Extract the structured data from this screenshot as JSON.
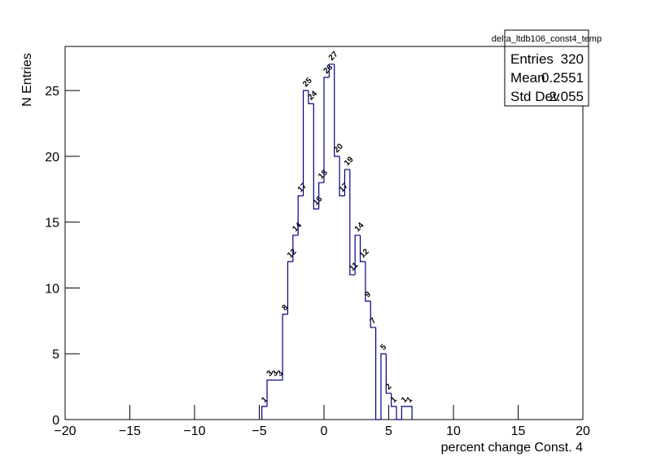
{
  "chart_data": {
    "type": "histogram",
    "x_label": "percent change Const. 4",
    "y_label": "N Entries",
    "bins": [
      -4.8,
      -4.4,
      -4.0,
      -3.6,
      -3.2,
      -2.8,
      -2.4,
      -2.0,
      -1.6,
      -1.2,
      -0.8,
      -0.4,
      0,
      0.4,
      0.8,
      1.2,
      1.6,
      2.0,
      2.4,
      2.8,
      3.2,
      3.6,
      4.0,
      4.4,
      4.8,
      5.2,
      5.6,
      6.0,
      6.4,
      6.8
    ],
    "values": [
      1,
      3,
      3,
      3,
      8,
      12,
      14,
      17,
      25,
      24,
      16,
      18,
      26,
      27,
      20,
      17,
      19,
      11,
      14,
      12,
      9,
      7,
      0,
      5,
      2,
      1,
      0,
      1,
      1
    ],
    "color": "#000080",
    "xlim": [
      -20,
      20
    ],
    "xticks": [
      {
        "value": -20,
        "label": "−20"
      },
      {
        "value": -15,
        "label": "−15"
      },
      {
        "value": -10,
        "label": "−10"
      },
      {
        "value": -5,
        "label": "−5"
      },
      0,
      5,
      10,
      15,
      20
    ],
    "ylim": [
      0,
      28.35
    ],
    "yticks": [
      0,
      5,
      10,
      15,
      20,
      25
    ],
    "stats": {
      "title": "delta_ltdb106_const4_temp",
      "rows": [
        [
          "Entries",
          "320"
        ],
        [
          "Mean",
          "0.2551"
        ],
        [
          "Std Dev",
          "2.055"
        ]
      ]
    }
  }
}
